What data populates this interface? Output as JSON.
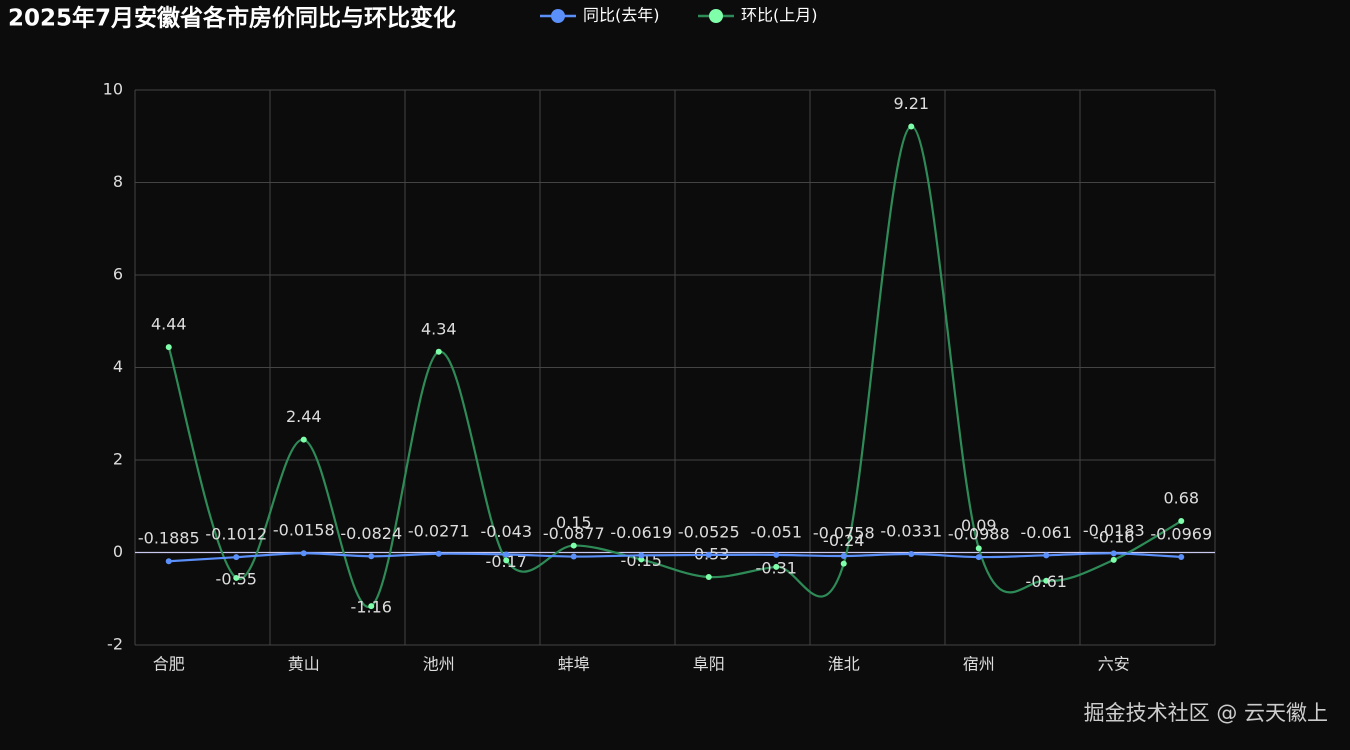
{
  "chart_data": {
    "type": "line",
    "title": "2025年7月安徽省各市房价同比与环比变化",
    "categories": [
      "合肥",
      null,
      "黄山",
      null,
      "池州",
      null,
      "蚌埠",
      null,
      "阜阳",
      null,
      "淮北",
      null,
      "宿州",
      null,
      "六安",
      null
    ],
    "series": [
      {
        "name": "同比(去年)",
        "color": "#5b8ff9",
        "values": [
          -0.1885,
          -0.1012,
          -0.0158,
          -0.0824,
          -0.0271,
          -0.043,
          -0.0877,
          -0.0619,
          -0.0525,
          -0.051,
          -0.0758,
          -0.0331,
          -0.0988,
          -0.061,
          -0.0183,
          -0.0969
        ]
      },
      {
        "name": "环比(上月)",
        "color": "#2e8b57",
        "values": [
          4.44,
          -0.55,
          2.44,
          -1.16,
          4.34,
          -0.17,
          0.15,
          -0.15,
          -0.53,
          -0.31,
          -0.24,
          9.21,
          0.09,
          -0.61,
          -0.16,
          0.68
        ]
      }
    ],
    "ylim": [
      -2,
      10
    ],
    "yticks": [
      -2,
      0,
      2,
      4,
      6,
      8,
      10
    ],
    "grid": true,
    "smooth": true
  },
  "watermark": "掘金技术社区 @ 云天徽上"
}
